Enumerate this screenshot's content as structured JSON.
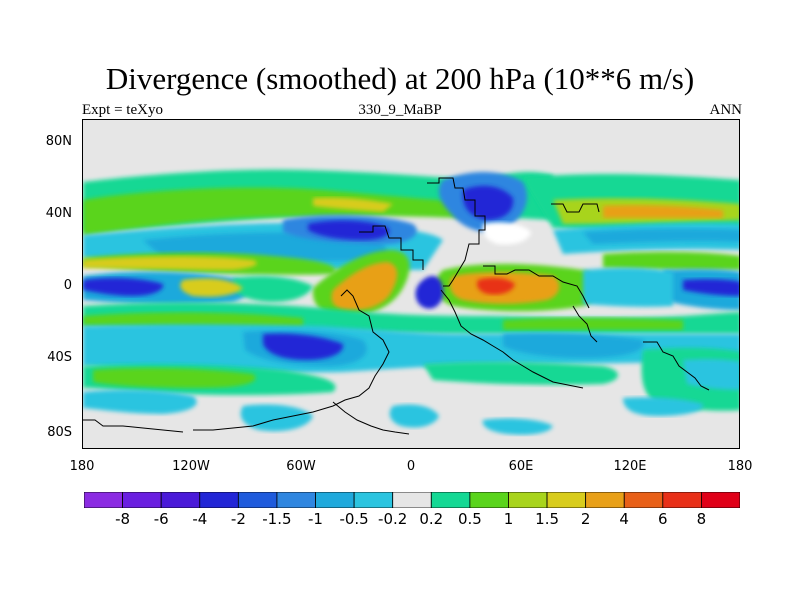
{
  "title": "Divergence (smoothed) at 200 hPa (10**6 m/s)",
  "subtitle_left": "Expt = teXyo",
  "subtitle_center": "330_9_MaBP",
  "subtitle_right": "ANN",
  "lat_labels": [
    "80N",
    "40N",
    "0",
    "40S",
    "80S"
  ],
  "lon_labels": [
    "180",
    "120W",
    "60W",
    "0",
    "60E",
    "120E",
    "180"
  ],
  "colorbar": {
    "labels": [
      "-8",
      "-6",
      "-4",
      "-2",
      "-1.5",
      "-1",
      "-0.5",
      "-0.2",
      "0.2",
      "0.5",
      "1",
      "1.5",
      "2",
      "4",
      "6",
      "8"
    ],
    "colors": [
      "#8b2be2",
      "#6a1fe0",
      "#4a1ad8",
      "#2226d6",
      "#1f5bdc",
      "#2f86e0",
      "#1fa9dc",
      "#2bc4e0",
      "#e6e6e6",
      "#14d894",
      "#5ad41c",
      "#a8d41c",
      "#d8cc1c",
      "#e8a018",
      "#e86018",
      "#e83018",
      "#e00018"
    ]
  },
  "colors": {
    "land_gray": "#e6e6e6",
    "coast": "#000000"
  }
}
